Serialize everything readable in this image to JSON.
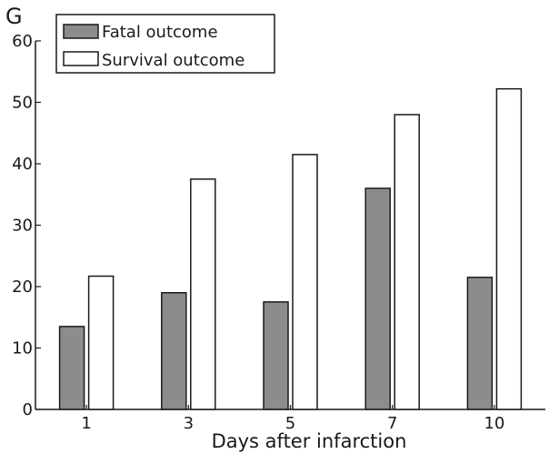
{
  "panel_label": "G",
  "colors": {
    "fatal": "#8c8c8c",
    "survival": "#ffffff",
    "stroke": "#1a1a1a"
  },
  "chart_data": {
    "type": "bar",
    "categories": [
      "1",
      "3",
      "5",
      "7",
      "10"
    ],
    "series": [
      {
        "name": "Fatal outcome",
        "values": [
          13.5,
          19.0,
          17.5,
          36.0,
          21.5
        ]
      },
      {
        "name": "Survival outcome",
        "values": [
          21.7,
          37.5,
          41.5,
          48.0,
          52.2
        ]
      }
    ],
    "xlabel": "Days after infarction",
    "ylabel": "",
    "ylim": [
      0,
      60
    ],
    "yticks": [
      0,
      10,
      20,
      30,
      40,
      50,
      60
    ],
    "grid": false,
    "legend_placement": "top-left"
  }
}
